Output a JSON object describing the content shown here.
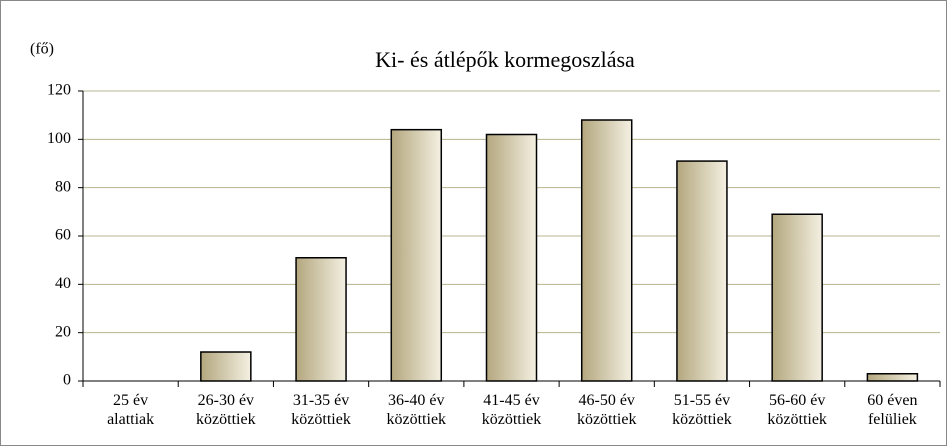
{
  "chart_data": {
    "type": "bar",
    "title": "Ki- és átlépők kormegoszlása",
    "y_label": "(fő)",
    "categories": [
      "25 év alattiak",
      "26-30 év közöttiek",
      "31-35 év közöttiek",
      "36-40 év közöttiek",
      "41-45 év közöttiek",
      "46-50 év közöttiek",
      "51-55 év közöttiek",
      "56-60 év közöttiek",
      "60 éven felüliek"
    ],
    "values": [
      0,
      12,
      51,
      104,
      102,
      108,
      91,
      69,
      3
    ],
    "color": "#b3a77e",
    "ylim": [
      0,
      120
    ],
    "yticks": [
      0,
      20,
      40,
      60,
      80,
      100,
      120
    ],
    "grid": true
  }
}
